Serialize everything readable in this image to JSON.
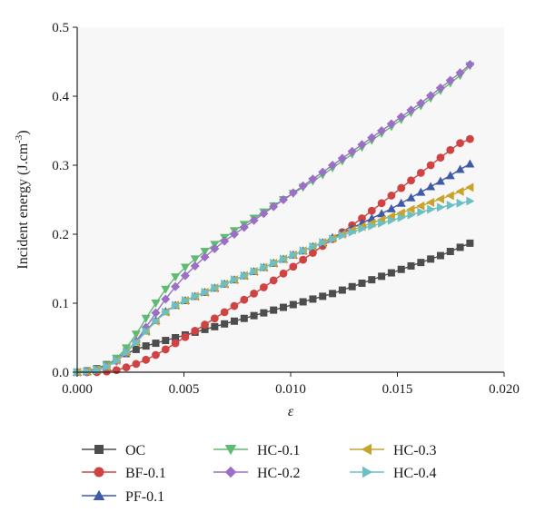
{
  "chart_data": {
    "type": "line",
    "xlabel": "ε",
    "ylabel": "Incident energy (J.cm",
    "ylabel_superscript": "-3",
    "ylabel_suffix": ")",
    "xlim": [
      0,
      0.02
    ],
    "ylim": [
      0,
      0.5
    ],
    "x_ticks": [
      0.0,
      0.005,
      0.01,
      0.015,
      0.02
    ],
    "x_tick_labels": [
      "0.000",
      "0.005",
      "0.010",
      "0.015",
      "0.020"
    ],
    "y_ticks": [
      0.0,
      0.1,
      0.2,
      0.3,
      0.4,
      0.5
    ],
    "y_tick_labels": [
      "0.0",
      "0.1",
      "0.2",
      "0.3",
      "0.4",
      "0.5"
    ],
    "grid": false,
    "legend_position": "bottom",
    "x": [
      0.0,
      0.00046,
      0.00092,
      0.00138,
      0.00184,
      0.0023,
      0.00276,
      0.00322,
      0.00368,
      0.00414,
      0.0046,
      0.00506,
      0.00552,
      0.00598,
      0.00644,
      0.0069,
      0.00736,
      0.00782,
      0.00828,
      0.00874,
      0.0092,
      0.00966,
      0.01012,
      0.01058,
      0.01104,
      0.0115,
      0.01196,
      0.01242,
      0.01288,
      0.01334,
      0.0138,
      0.01426,
      0.01472,
      0.01518,
      0.01564,
      0.0161,
      0.01656,
      0.01702,
      0.01748,
      0.01794,
      0.0184
    ],
    "series": [
      {
        "name": "OC",
        "marker": "square",
        "color": "#4d4d4d",
        "values": [
          0.0,
          0.002,
          0.005,
          0.011,
          0.019,
          0.027,
          0.033,
          0.038,
          0.042,
          0.046,
          0.05,
          0.054,
          0.058,
          0.062,
          0.066,
          0.07,
          0.074,
          0.078,
          0.082,
          0.086,
          0.09,
          0.094,
          0.098,
          0.102,
          0.106,
          0.11,
          0.114,
          0.119,
          0.124,
          0.129,
          0.134,
          0.139,
          0.144,
          0.149,
          0.154,
          0.159,
          0.164,
          0.169,
          0.175,
          0.181,
          0.187
        ]
      },
      {
        "name": "BF-0.1",
        "marker": "circle",
        "color": "#d04343",
        "values": [
          0.0,
          0.0,
          0.0,
          0.001,
          0.003,
          0.007,
          0.012,
          0.018,
          0.025,
          0.033,
          0.042,
          0.051,
          0.06,
          0.069,
          0.078,
          0.087,
          0.096,
          0.105,
          0.114,
          0.123,
          0.133,
          0.143,
          0.153,
          0.163,
          0.173,
          0.183,
          0.193,
          0.203,
          0.213,
          0.223,
          0.234,
          0.245,
          0.256,
          0.267,
          0.278,
          0.289,
          0.3,
          0.311,
          0.322,
          0.332,
          0.338
        ]
      },
      {
        "name": "PF-0.1",
        "marker": "triangle-up",
        "color": "#3f5aa8",
        "values": [
          0.0,
          0.001,
          0.003,
          0.008,
          0.018,
          0.03,
          0.044,
          0.06,
          0.075,
          0.088,
          0.097,
          0.104,
          0.11,
          0.116,
          0.122,
          0.128,
          0.134,
          0.14,
          0.146,
          0.152,
          0.158,
          0.164,
          0.17,
          0.176,
          0.182,
          0.188,
          0.195,
          0.202,
          0.209,
          0.216,
          0.223,
          0.23,
          0.237,
          0.245,
          0.253,
          0.261,
          0.269,
          0.277,
          0.285,
          0.294,
          0.302
        ]
      },
      {
        "name": "HC-0.1",
        "marker": "triangle-down",
        "color": "#5fba72",
        "values": [
          0.0,
          0.001,
          0.004,
          0.01,
          0.02,
          0.035,
          0.055,
          0.078,
          0.1,
          0.12,
          0.138,
          0.152,
          0.164,
          0.175,
          0.185,
          0.195,
          0.205,
          0.214,
          0.223,
          0.232,
          0.241,
          0.25,
          0.259,
          0.268,
          0.277,
          0.286,
          0.296,
          0.306,
          0.316,
          0.326,
          0.336,
          0.346,
          0.356,
          0.366,
          0.376,
          0.386,
          0.397,
          0.408,
          0.419,
          0.43,
          0.444
        ]
      },
      {
        "name": "HC-0.2",
        "marker": "diamond",
        "color": "#9b6fc6",
        "values": [
          0.0,
          0.001,
          0.003,
          0.008,
          0.016,
          0.028,
          0.045,
          0.065,
          0.086,
          0.106,
          0.124,
          0.14,
          0.154,
          0.167,
          0.179,
          0.19,
          0.2,
          0.21,
          0.22,
          0.23,
          0.24,
          0.25,
          0.26,
          0.27,
          0.28,
          0.29,
          0.3,
          0.31,
          0.32,
          0.33,
          0.34,
          0.35,
          0.36,
          0.37,
          0.38,
          0.39,
          0.401,
          0.412,
          0.423,
          0.434,
          0.446
        ]
      },
      {
        "name": "HC-0.3",
        "marker": "triangle-left",
        "color": "#c8a42a",
        "values": [
          0.0,
          0.001,
          0.003,
          0.008,
          0.017,
          0.029,
          0.043,
          0.059,
          0.074,
          0.087,
          0.097,
          0.104,
          0.11,
          0.116,
          0.122,
          0.128,
          0.134,
          0.14,
          0.146,
          0.152,
          0.158,
          0.164,
          0.17,
          0.176,
          0.182,
          0.188,
          0.194,
          0.2,
          0.206,
          0.211,
          0.216,
          0.221,
          0.226,
          0.231,
          0.236,
          0.241,
          0.246,
          0.251,
          0.256,
          0.262,
          0.268
        ]
      },
      {
        "name": "HC-0.4",
        "marker": "triangle-right",
        "color": "#6cc0c4",
        "values": [
          0.0,
          0.001,
          0.003,
          0.008,
          0.017,
          0.029,
          0.043,
          0.059,
          0.074,
          0.087,
          0.097,
          0.104,
          0.11,
          0.116,
          0.122,
          0.128,
          0.134,
          0.14,
          0.146,
          0.152,
          0.158,
          0.164,
          0.17,
          0.176,
          0.182,
          0.188,
          0.193,
          0.198,
          0.203,
          0.208,
          0.212,
          0.216,
          0.22,
          0.224,
          0.228,
          0.232,
          0.236,
          0.239,
          0.242,
          0.245,
          0.248
        ]
      }
    ]
  }
}
